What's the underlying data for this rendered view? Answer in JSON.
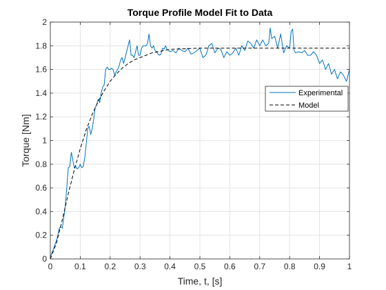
{
  "chart_data": {
    "type": "line",
    "title": "Torque Profile Model Fit to Data",
    "xlabel": "Time, t, [s]",
    "ylabel": "Torque [Nm]",
    "xlim": [
      0,
      1
    ],
    "ylim": [
      0,
      2
    ],
    "xticks": [
      0,
      0.1,
      0.2,
      0.3,
      0.4,
      0.5,
      0.6,
      0.7,
      0.8,
      0.9,
      1
    ],
    "yticks": [
      0,
      0.2,
      0.4,
      0.6,
      0.8,
      1,
      1.2,
      1.4,
      1.6,
      1.8,
      2
    ],
    "xtick_labels": [
      "0",
      "0.1",
      "0.2",
      "0.3",
      "0.4",
      "0.5",
      "0.6",
      "0.7",
      "0.8",
      "0.9",
      "1"
    ],
    "ytick_labels": [
      "0",
      "0.2",
      "0.4",
      "0.6",
      "0.8",
      "1",
      "1.2",
      "1.4",
      "1.6",
      "1.8",
      "2"
    ],
    "grid": true,
    "legend": {
      "placement": "right",
      "entries": [
        "Experimental",
        "Model"
      ]
    },
    "series": [
      {
        "name": "Experimental",
        "color": "#0072BD",
        "style": "solid",
        "x": [
          0,
          0.005,
          0.01,
          0.015,
          0.02,
          0.025,
          0.03,
          0.035,
          0.04,
          0.045,
          0.05,
          0.055,
          0.06,
          0.065,
          0.07,
          0.075,
          0.08,
          0.085,
          0.09,
          0.095,
          0.1,
          0.105,
          0.11,
          0.115,
          0.12,
          0.125,
          0.13,
          0.135,
          0.14,
          0.145,
          0.15,
          0.155,
          0.16,
          0.165,
          0.17,
          0.175,
          0.18,
          0.185,
          0.19,
          0.195,
          0.2,
          0.205,
          0.21,
          0.215,
          0.22,
          0.225,
          0.23,
          0.235,
          0.24,
          0.245,
          0.25,
          0.255,
          0.26,
          0.265,
          0.27,
          0.275,
          0.28,
          0.285,
          0.29,
          0.295,
          0.3,
          0.305,
          0.31,
          0.315,
          0.32,
          0.325,
          0.33,
          0.335,
          0.34,
          0.345,
          0.35,
          0.355,
          0.36,
          0.365,
          0.37,
          0.375,
          0.38,
          0.385,
          0.39,
          0.395,
          0.4,
          0.41,
          0.42,
          0.43,
          0.44,
          0.45,
          0.46,
          0.47,
          0.48,
          0.49,
          0.5,
          0.51,
          0.52,
          0.53,
          0.54,
          0.55,
          0.56,
          0.57,
          0.58,
          0.59,
          0.6,
          0.61,
          0.62,
          0.63,
          0.64,
          0.65,
          0.66,
          0.67,
          0.68,
          0.69,
          0.7,
          0.71,
          0.72,
          0.73,
          0.735,
          0.74,
          0.75,
          0.76,
          0.77,
          0.78,
          0.79,
          0.8,
          0.805,
          0.81,
          0.815,
          0.82,
          0.83,
          0.84,
          0.85,
          0.86,
          0.87,
          0.88,
          0.89,
          0.9,
          0.91,
          0.92,
          0.93,
          0.94,
          0.95,
          0.96,
          0.97,
          0.98,
          0.99,
          1
        ],
        "y": [
          0.02,
          0.05,
          0.08,
          0.12,
          0.15,
          0.2,
          0.26,
          0.27,
          0.26,
          0.35,
          0.45,
          0.6,
          0.77,
          0.78,
          0.9,
          0.84,
          0.77,
          0.78,
          0.76,
          0.77,
          0.8,
          0.77,
          0.78,
          0.85,
          0.97,
          1.1,
          1.12,
          1.05,
          1.1,
          1.18,
          1.28,
          1.3,
          1.35,
          1.32,
          1.4,
          1.45,
          1.47,
          1.6,
          1.62,
          1.6,
          1.6,
          1.61,
          1.6,
          1.55,
          1.58,
          1.6,
          1.63,
          1.68,
          1.7,
          1.65,
          1.7,
          1.75,
          1.8,
          1.85,
          1.72,
          1.72,
          1.7,
          1.75,
          1.8,
          1.72,
          1.72,
          1.78,
          1.8,
          1.8,
          1.8,
          1.82,
          1.9,
          1.8,
          1.78,
          1.8,
          1.76,
          1.75,
          1.73,
          1.72,
          1.73,
          1.78,
          1.77,
          1.8,
          1.77,
          1.76,
          1.75,
          1.76,
          1.74,
          1.78,
          1.76,
          1.75,
          1.78,
          1.73,
          1.74,
          1.76,
          1.78,
          1.7,
          1.72,
          1.8,
          1.82,
          1.74,
          1.78,
          1.77,
          1.7,
          1.75,
          1.72,
          1.74,
          1.78,
          1.72,
          1.8,
          1.76,
          1.84,
          1.82,
          1.78,
          1.85,
          1.8,
          1.85,
          1.8,
          1.82,
          1.95,
          1.86,
          1.88,
          1.78,
          1.9,
          1.74,
          1.8,
          1.78,
          1.92,
          1.94,
          1.76,
          1.74,
          1.75,
          1.74,
          1.76,
          1.72,
          1.72,
          1.75,
          1.72,
          1.65,
          1.68,
          1.6,
          1.65,
          1.56,
          1.6,
          1.52,
          1.58,
          1.55,
          1.5,
          1.6
        ]
      },
      {
        "name": "Model",
        "color": "#000000",
        "style": "dashed",
        "x": [
          0,
          0.02,
          0.04,
          0.06,
          0.08,
          0.1,
          0.12,
          0.14,
          0.16,
          0.18,
          0.2,
          0.22,
          0.24,
          0.26,
          0.28,
          0.3,
          0.32,
          0.34,
          0.36,
          0.38,
          0.4,
          0.45,
          0.5,
          0.55,
          0.6,
          0.65,
          0.7,
          0.75,
          0.8,
          0.85,
          0.9,
          0.95,
          1
        ],
        "y": [
          0.0,
          0.13,
          0.33,
          0.55,
          0.75,
          0.93,
          1.09,
          1.22,
          1.33,
          1.42,
          1.5,
          1.56,
          1.61,
          1.65,
          1.68,
          1.7,
          1.72,
          1.74,
          1.75,
          1.76,
          1.77,
          1.775,
          1.78,
          1.78,
          1.78,
          1.78,
          1.78,
          1.78,
          1.78,
          1.78,
          1.78,
          1.78,
          1.78
        ]
      }
    ]
  }
}
